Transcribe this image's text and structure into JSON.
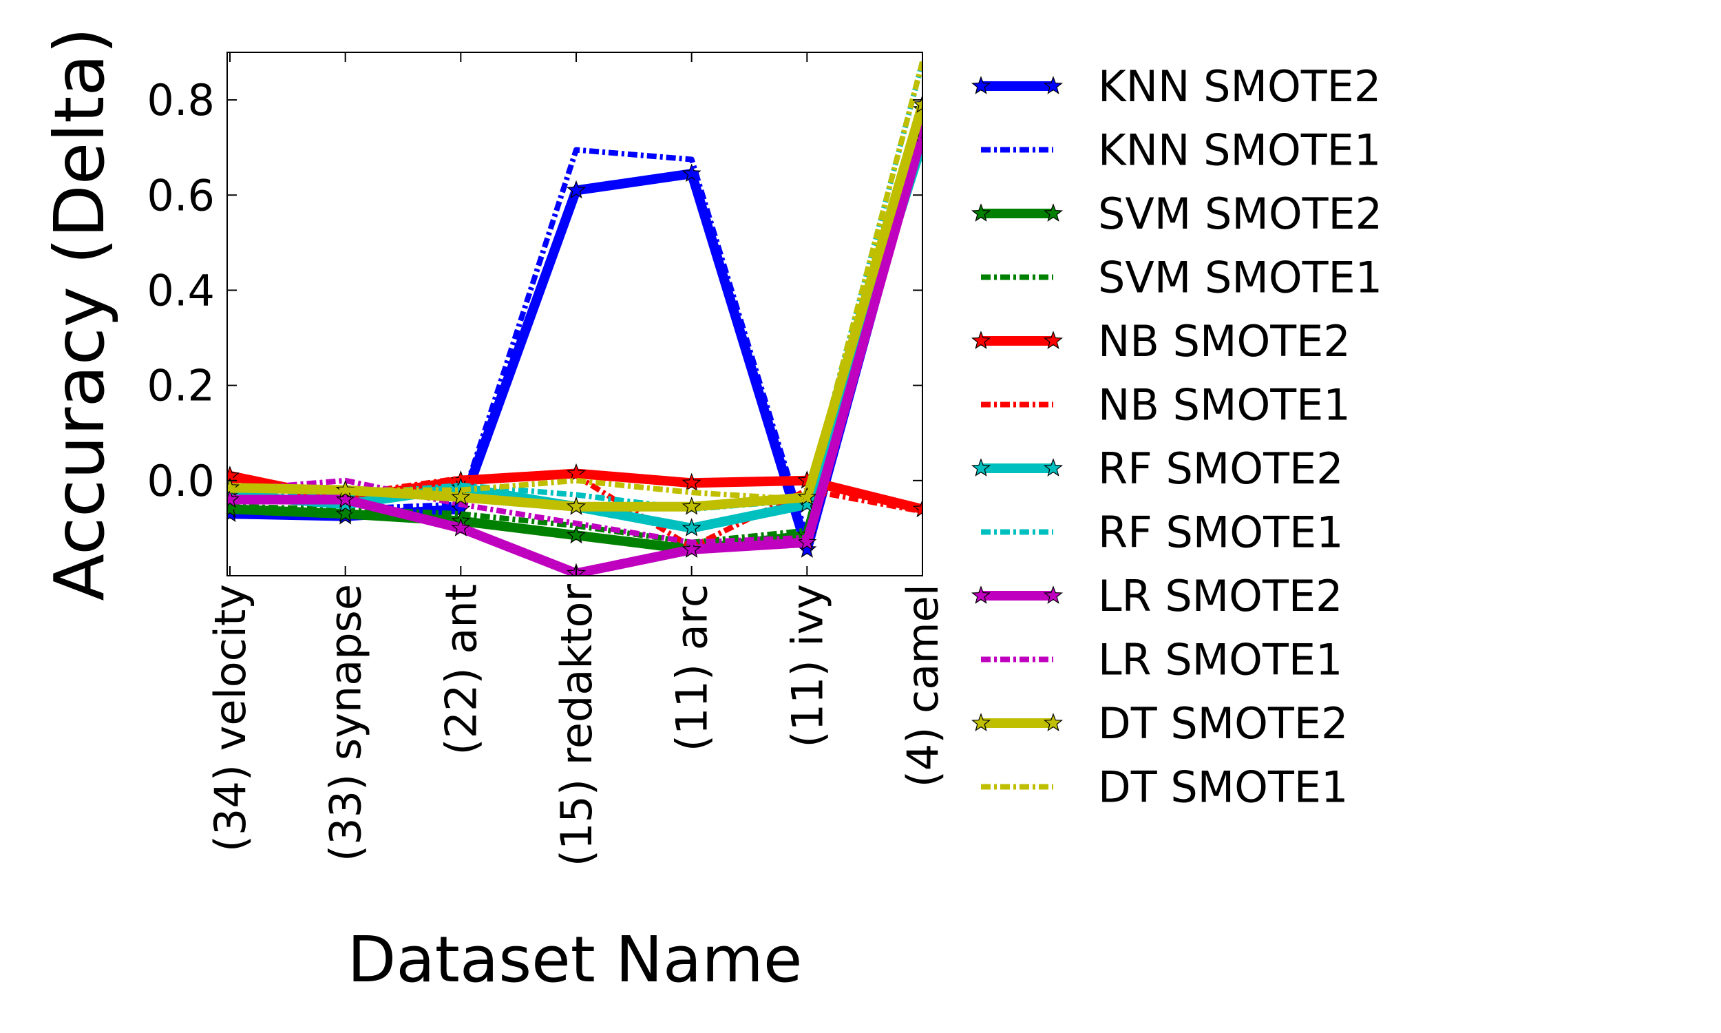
{
  "chart_data": {
    "type": "line",
    "title": "",
    "xlabel": "Dataset Name",
    "ylabel": "Accuracy (Delta)",
    "categories": [
      "(34) velocity",
      "(33) synapse",
      "(22) ant",
      "(15) redaktor",
      "(11) arc",
      "(11) ivy",
      "(4) camel"
    ],
    "ylim": [
      -0.2,
      0.9
    ],
    "yticks": [
      0.0,
      0.2,
      0.4,
      0.6,
      0.8
    ],
    "ytick_labels": [
      "0.0",
      "0.2",
      "0.4",
      "0.6",
      "0.8"
    ],
    "grid": false,
    "legend_position": "right, outside plot",
    "series": [
      {
        "name": "KNN SMOTE2",
        "color": "#0000ff",
        "style": "solid",
        "marker": "star",
        "values": [
          -0.07,
          -0.075,
          -0.06,
          0.61,
          0.645,
          -0.145,
          0.74
        ]
      },
      {
        "name": "KNN SMOTE1",
        "color": "#0000ff",
        "style": "dashdot",
        "marker": "none",
        "values": [
          -0.06,
          -0.06,
          -0.05,
          0.695,
          0.675,
          -0.12,
          0.76
        ]
      },
      {
        "name": "SVM SMOTE2",
        "color": "#008000",
        "style": "solid",
        "marker": "star",
        "values": [
          -0.06,
          -0.07,
          -0.085,
          -0.115,
          -0.145,
          -0.115,
          0.78
        ]
      },
      {
        "name": "SVM SMOTE1",
        "color": "#008000",
        "style": "dashdot",
        "marker": "none",
        "values": [
          -0.055,
          -0.06,
          -0.07,
          -0.095,
          -0.13,
          -0.105,
          0.79
        ]
      },
      {
        "name": "NB SMOTE2",
        "color": "#ff0000",
        "style": "solid",
        "marker": "star",
        "values": [
          0.01,
          -0.04,
          0.0,
          0.015,
          -0.005,
          0.0,
          -0.06
        ]
      },
      {
        "name": "NB SMOTE1",
        "color": "#ff0000",
        "style": "dashdot",
        "marker": "none",
        "values": [
          0.0,
          -0.03,
          0.005,
          0.01,
          -0.14,
          -0.02,
          -0.065
        ]
      },
      {
        "name": "RF SMOTE2",
        "color": "#00bfbf",
        "style": "solid",
        "marker": "star",
        "values": [
          -0.03,
          -0.05,
          -0.015,
          -0.055,
          -0.1,
          -0.05,
          0.71
        ]
      },
      {
        "name": "RF SMOTE1",
        "color": "#00bfbf",
        "style": "dashdot",
        "marker": "none",
        "values": [
          -0.02,
          -0.03,
          -0.01,
          -0.03,
          -0.06,
          -0.04,
          0.88
        ]
      },
      {
        "name": "LR SMOTE2",
        "color": "#bf00bf",
        "style": "solid",
        "marker": "star",
        "values": [
          -0.04,
          -0.04,
          -0.1,
          -0.195,
          -0.145,
          -0.13,
          0.73
        ]
      },
      {
        "name": "LR SMOTE1",
        "color": "#bf00bf",
        "style": "dashdot",
        "marker": "none",
        "values": [
          -0.02,
          0.0,
          -0.05,
          -0.09,
          -0.13,
          -0.12,
          0.75
        ]
      },
      {
        "name": "DT SMOTE2",
        "color": "#bfbf00",
        "style": "solid",
        "marker": "star",
        "values": [
          -0.015,
          -0.02,
          -0.035,
          -0.055,
          -0.055,
          -0.035,
          0.79
        ]
      },
      {
        "name": "DT SMOTE1",
        "color": "#bfbf00",
        "style": "dashdot",
        "marker": "none",
        "values": [
          -0.02,
          -0.02,
          -0.02,
          0.0,
          -0.025,
          -0.04,
          0.88
        ]
      }
    ]
  }
}
